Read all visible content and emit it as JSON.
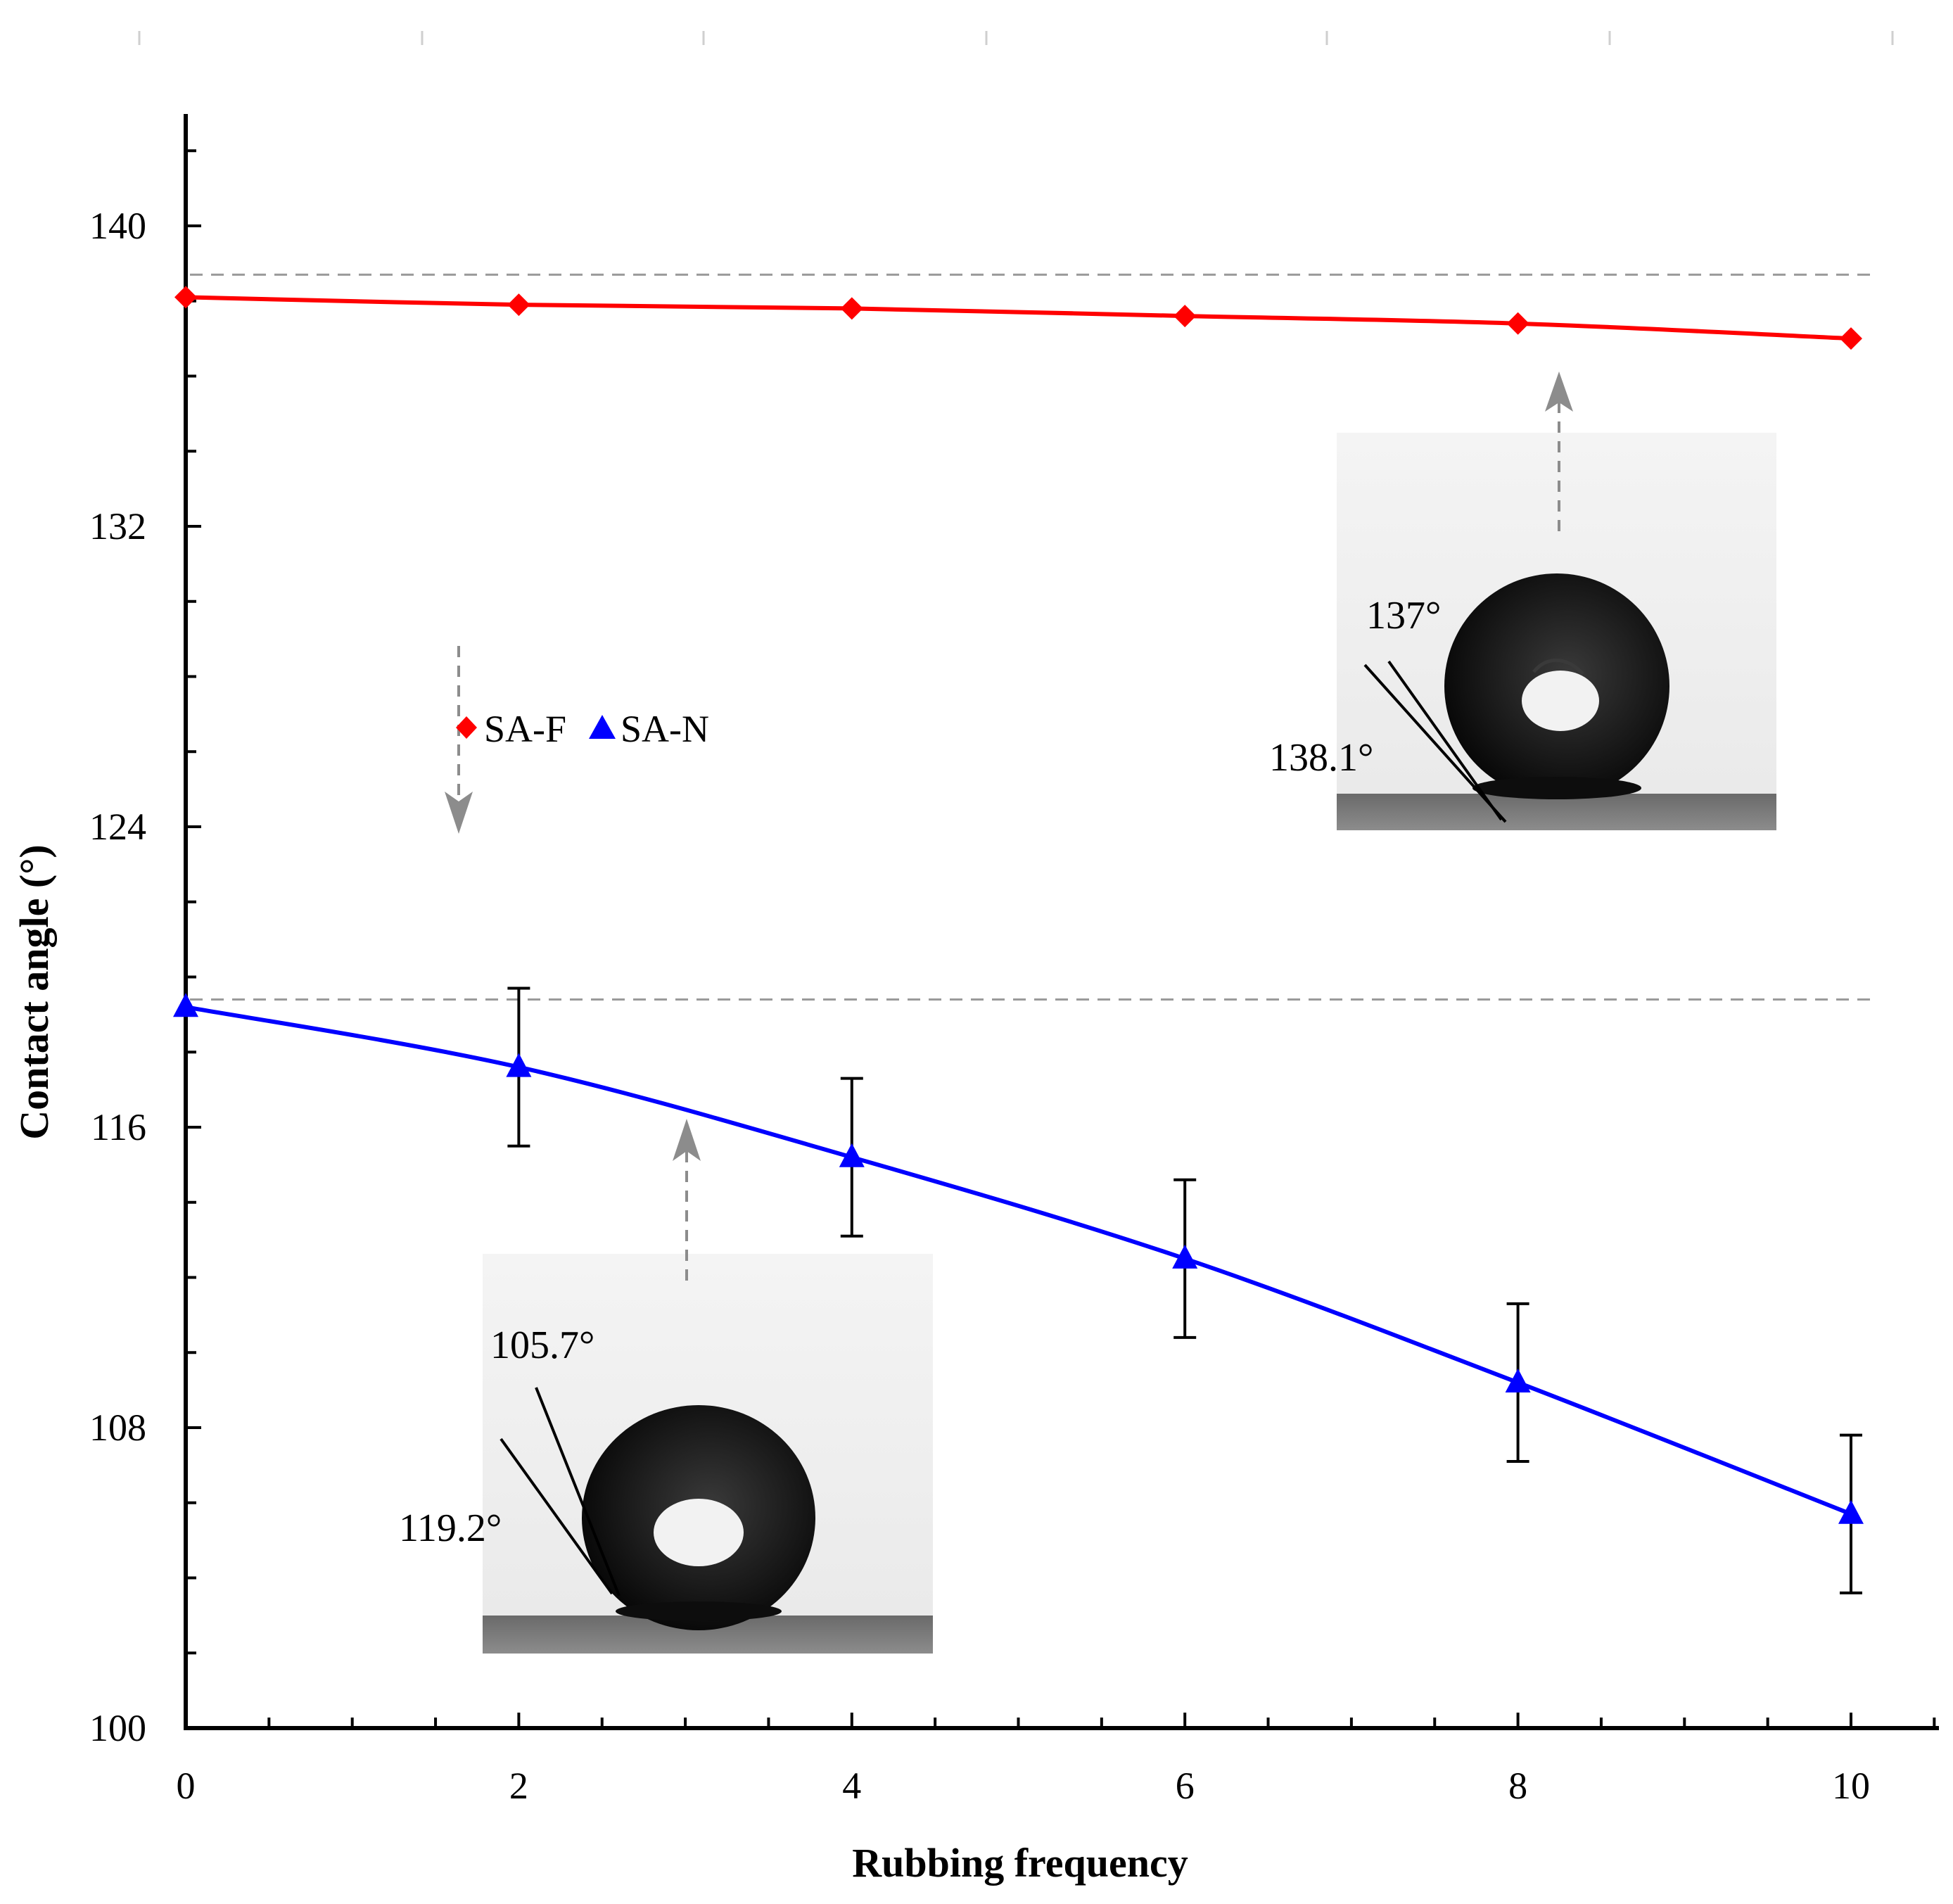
{
  "chart_data": {
    "type": "line",
    "title": "",
    "xlabel": "Rubbing frequency",
    "ylabel": "Contact angle (°)",
    "xlim": [
      0,
      10.5
    ],
    "ylim": [
      100,
      143
    ],
    "x_ticks": [
      0,
      2,
      4,
      6,
      8,
      10
    ],
    "y_ticks": [
      100,
      108,
      116,
      124,
      132,
      140
    ],
    "grid": false,
    "reference_lines": [
      138.7,
      119.4
    ],
    "series": [
      {
        "name": "SA-F",
        "marker": "diamond",
        "color": "#ff0000",
        "x": [
          0,
          2,
          4,
          6,
          8,
          10
        ],
        "y": [
          138.1,
          137.9,
          137.8,
          137.6,
          137.4,
          137.0
        ],
        "error": [
          0,
          0,
          0,
          0,
          0,
          0
        ]
      },
      {
        "name": "SA-N",
        "marker": "triangle",
        "color": "#0000ff",
        "x": [
          0,
          2,
          4,
          6,
          8,
          10
        ],
        "y": [
          119.2,
          117.6,
          115.2,
          112.5,
          109.2,
          105.7
        ],
        "error": [
          0,
          2.1,
          2.1,
          2.1,
          2.1,
          2.1
        ]
      }
    ],
    "legend": {
      "position": "upper-left",
      "entries": [
        "SA-F",
        "SA-N"
      ]
    },
    "annotations": {
      "inset_top": {
        "label_upper": "137°",
        "label_lower": "138.1°"
      },
      "inset_bottom": {
        "label_upper": "105.7°",
        "label_lower": "119.2°"
      }
    }
  }
}
